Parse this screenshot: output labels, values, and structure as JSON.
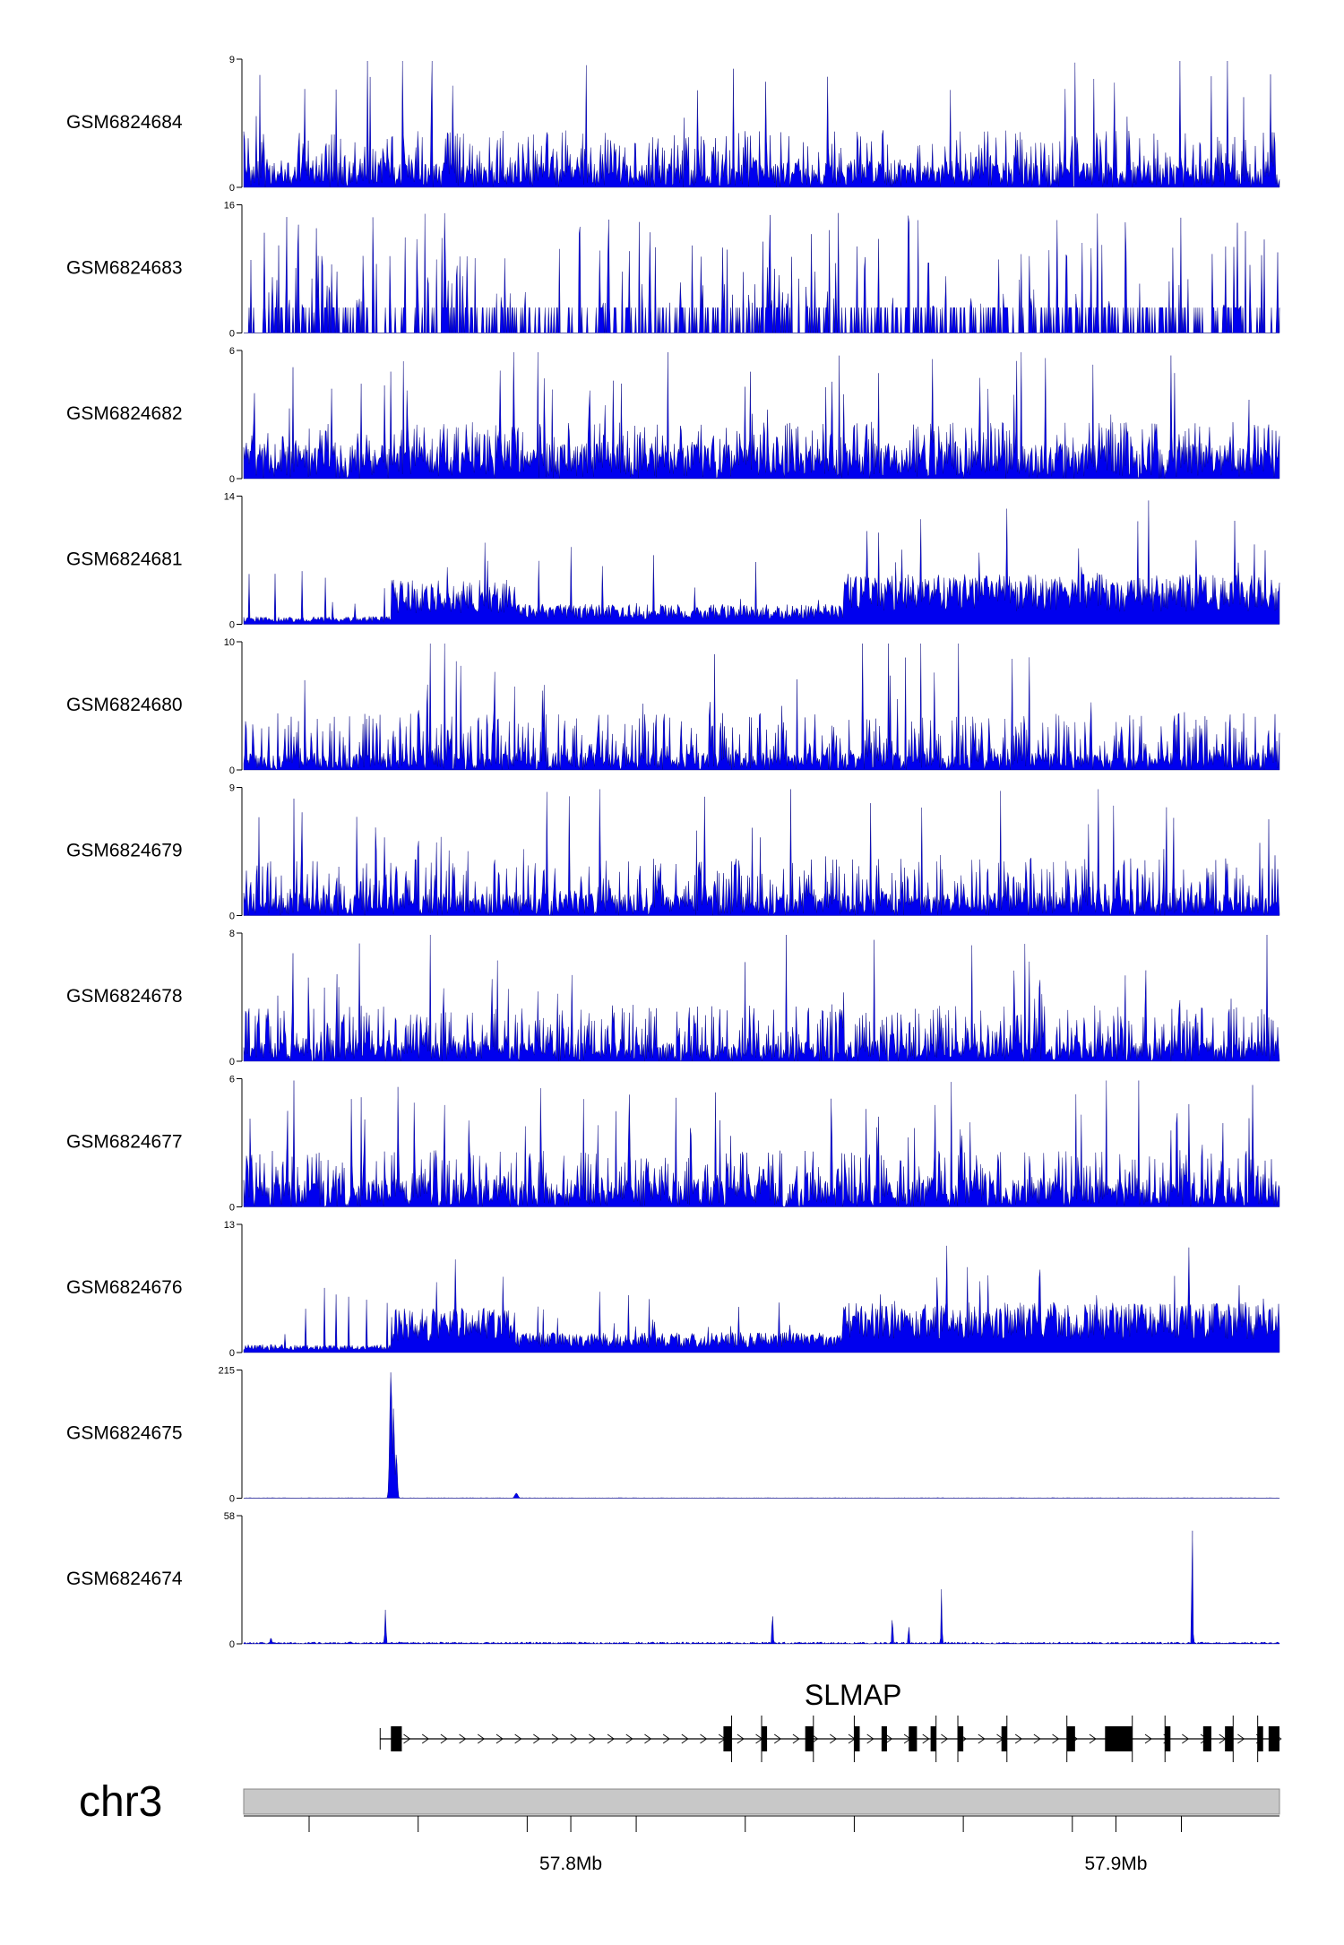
{
  "chart_data": {
    "type": "area",
    "chromosome": "chr3",
    "region": {
      "start": 57740000,
      "end": 57930000
    },
    "gene": {
      "name": "SLMAP",
      "strand": "+",
      "span": [
        57767000,
        57930000
      ],
      "exons": [
        [
          57767000,
          57769000
        ],
        [
          57828000,
          57829500
        ],
        [
          57835000,
          57836000
        ],
        [
          57843000,
          57844500
        ],
        [
          57852000,
          57853000
        ],
        [
          57857000,
          57858000
        ],
        [
          57862000,
          57863500
        ],
        [
          57866000,
          57867000
        ],
        [
          57871000,
          57872000
        ],
        [
          57879000,
          57880000
        ],
        [
          57891000,
          57892500
        ],
        [
          57898000,
          57903000
        ],
        [
          57909000,
          57910000
        ],
        [
          57916000,
          57917500
        ],
        [
          57920000,
          57921500
        ],
        [
          57926000,
          57927000
        ],
        [
          57928000,
          57930000
        ]
      ],
      "introns": [
        [
          57829500,
          57835000
        ],
        [
          57844500,
          57852000
        ],
        [
          57867000,
          57871000
        ],
        [
          57880000,
          57891000
        ],
        [
          57903000,
          57909000
        ],
        [
          57921500,
          57926000
        ]
      ]
    },
    "x_axis": {
      "labels": [
        {
          "pos": 57800000,
          "text": "57.8Mb"
        },
        {
          "pos": 57900000,
          "text": "57.9Mb"
        }
      ],
      "minor_ticks": [
        57752000,
        57772000,
        57792000,
        57812000,
        57832000,
        57852000,
        57872000,
        57892000,
        57912000
      ]
    },
    "color": "#0000ee",
    "tracks": [
      {
        "name": "GSM6824684",
        "ymax": 9,
        "profile": "noise",
        "fill": 0.2,
        "gaps": [
          57759000
        ],
        "peaks": []
      },
      {
        "name": "GSM6824683",
        "ymax": 16,
        "profile": "sparse",
        "fill": 0.18,
        "gaps": [],
        "peaks": []
      },
      {
        "name": "GSM6824682",
        "ymax": 6,
        "profile": "noise",
        "fill": 0.28,
        "gaps": [
          57759000
        ],
        "peaks": [
          [
            57787000,
            1.0
          ],
          [
            57770000,
            0.9
          ]
        ]
      },
      {
        "name": "GSM6824681",
        "ymax": 14,
        "profile": "ramp",
        "fill": 0.22,
        "gaps": [],
        "peaks": [
          [
            57880000,
            0.92
          ],
          [
            57904000,
            0.82
          ],
          [
            57906000,
            1.0
          ]
        ]
      },
      {
        "name": "GSM6824680",
        "ymax": 10,
        "profile": "noise",
        "fill": 0.14,
        "gaps": [],
        "peaks": [
          [
            57786000,
            1.0
          ],
          [
            57772000,
            0.72
          ]
        ]
      },
      {
        "name": "GSM6824679",
        "ymax": 9,
        "profile": "noise",
        "fill": 0.18,
        "gaps": [
          57759000
        ],
        "peaks": [
          [
            57772000,
            0.9
          ],
          [
            57855000,
            0.9
          ]
        ]
      },
      {
        "name": "GSM6824678",
        "ymax": 8,
        "profile": "noise",
        "fill": 0.16,
        "gaps": [],
        "peaks": [
          [
            57749000,
            1.0
          ],
          [
            57886000,
            0.98
          ]
        ]
      },
      {
        "name": "GSM6824677",
        "ymax": 6,
        "profile": "noise",
        "fill": 0.22,
        "gaps": [
          57759000
        ],
        "peaks": [
          [
            57748000,
            0.98
          ],
          [
            57822000,
            0.95
          ]
        ]
      },
      {
        "name": "GSM6824676",
        "ymax": 13,
        "profile": "ramp",
        "fill": 0.18,
        "gaps": [],
        "peaks": [
          [
            57886000,
            1.0
          ],
          [
            57869000,
            0.9
          ]
        ]
      },
      {
        "name": "GSM6824675",
        "ymax": 215,
        "profile": "flat",
        "fill": 0.004,
        "gaps": [],
        "peaks": [
          [
            57767000,
            1.0,
            300
          ],
          [
            57767500,
            0.72,
            220
          ],
          [
            57768000,
            0.35,
            250
          ],
          [
            57790000,
            0.04,
            400
          ]
        ]
      },
      {
        "name": "GSM6824674",
        "ymax": 58,
        "profile": "flat",
        "fill": 0.015,
        "gaps": [],
        "peaks": [
          [
            57766000,
            0.27,
            150
          ],
          [
            57837000,
            0.25,
            150
          ],
          [
            57859000,
            0.25,
            120
          ],
          [
            57862000,
            0.17,
            120
          ],
          [
            57868000,
            0.44,
            120
          ],
          [
            57914000,
            1.0,
            130
          ],
          [
            57745000,
            0.05,
            200
          ]
        ]
      }
    ]
  }
}
